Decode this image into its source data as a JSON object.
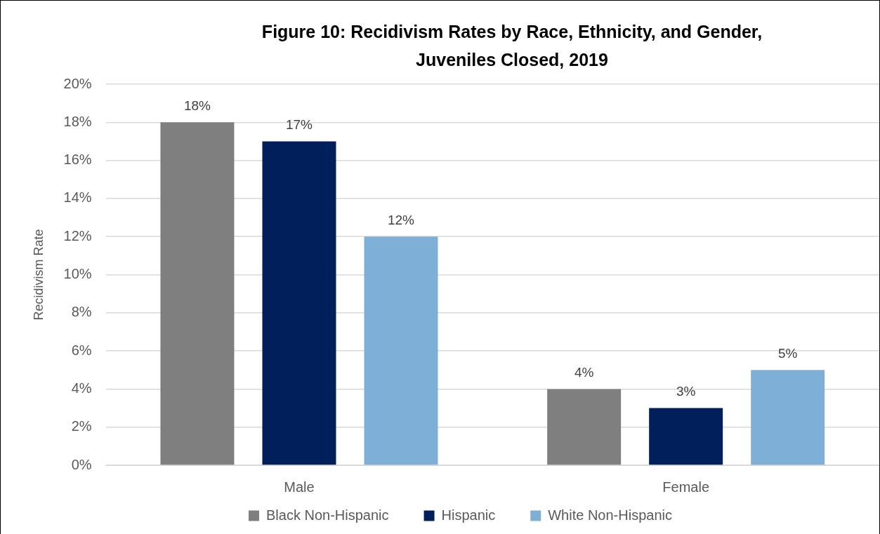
{
  "chart_data": {
    "type": "bar",
    "title": "Figure 10: Recidivism Rates by Race, Ethnicity, and Gender, Juveniles Closed, 2019",
    "ylabel": "Recidivism Rate",
    "categories": [
      "Male",
      "Female"
    ],
    "series": [
      {
        "name": "Black Non-Hispanic",
        "color": "#7f7f7f",
        "values": [
          18,
          4
        ],
        "value_labels": [
          "18%",
          "4%"
        ]
      },
      {
        "name": "Hispanic",
        "color": "#001f5b",
        "values": [
          17,
          3
        ],
        "value_labels": [
          "17%",
          "3%"
        ]
      },
      {
        "name": "White Non-Hispanic",
        "color": "#7eafd6",
        "values": [
          12,
          5
        ],
        "value_labels": [
          "12%",
          "5%"
        ]
      }
    ],
    "ylim": [
      0,
      20
    ],
    "yticks": [
      {
        "value": 0,
        "label": "0%"
      },
      {
        "value": 2,
        "label": "2%"
      },
      {
        "value": 4,
        "label": "4%"
      },
      {
        "value": 6,
        "label": "6%"
      },
      {
        "value": 8,
        "label": "8%"
      },
      {
        "value": 10,
        "label": "10%"
      },
      {
        "value": 12,
        "label": "12%"
      },
      {
        "value": 14,
        "label": "14%"
      },
      {
        "value": 16,
        "label": "16%"
      },
      {
        "value": 18,
        "label": "18%"
      },
      {
        "value": 20,
        "label": "20%"
      }
    ],
    "grid": "y",
    "legend": "bottom"
  }
}
